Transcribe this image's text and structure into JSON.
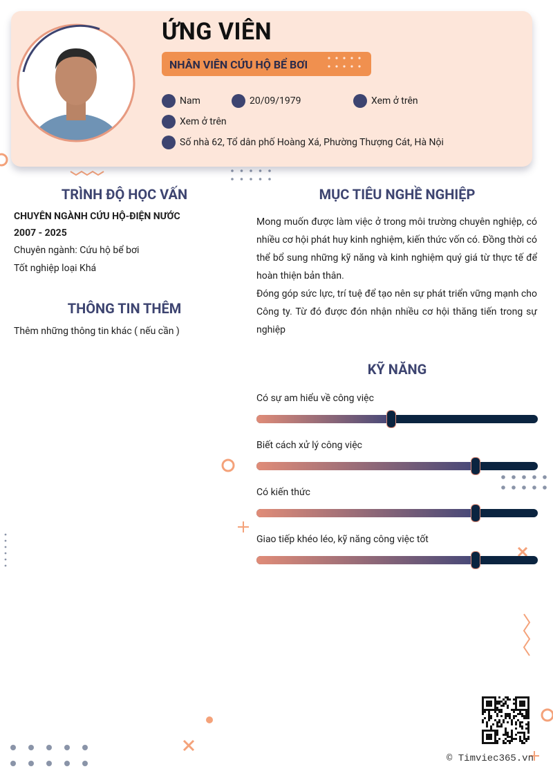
{
  "header": {
    "name": "ỨNG VIÊN",
    "position": "NHÂN VIÊN CỨU HỘ BỂ BƠI",
    "gender": "Nam",
    "birthdate": "20/09/1979",
    "phone": "Xem ở trên",
    "email": "Xem ở trên",
    "address": "Số nhà 62, Tổ dân phố Hoàng Xá, Phường Thượng Cát, Hà Nội"
  },
  "education": {
    "title": "TRÌNH ĐỘ HỌC VẤN",
    "major_title": "CHUYÊN NGÀNH CỨU HỘ-ĐIỆN NƯỚC",
    "period": "2007 - 2025",
    "major": "Chuyên ngành: Cứu hộ bể bơi",
    "grade": "Tốt nghiệp loại Khá"
  },
  "additional_info": {
    "title": "THÔNG TIN THÊM",
    "text": "Thêm những thông tin khác ( nếu cần )"
  },
  "objective": {
    "title": "MỤC TIÊU NGHỀ NGHIỆP",
    "paragraphs": [
      " Mong muốn được làm việc ở trong môi trường chuyên nghiệp, có nhiều cơ hội phát huy kinh nghiệm, kiến thức vốn có. Đồng thời có thể bổ sung những kỹ năng và kinh nghiệm quý giá từ thực tế để hoàn thiện bản thân.",
      "Đóng góp sức lực, trí tuệ để tạo nên sự phát triển vững mạnh cho Công ty. Từ đó được đón nhận nhiều cơ hội thăng tiến trong sự nghiệp"
    ]
  },
  "skills": {
    "title": "KỸ NĂNG",
    "items": [
      {
        "name": "Có sự am hiểu về công việc",
        "level": 48
      },
      {
        "name": "Biết cách xử lý công việc",
        "level": 78
      },
      {
        "name": "Có kiến thức",
        "level": 78
      },
      {
        "name": "Giao tiếp khéo léo, kỹ năng công việc tốt",
        "level": 78
      }
    ]
  },
  "footer": {
    "watermark": "© Timviec365.vn"
  }
}
